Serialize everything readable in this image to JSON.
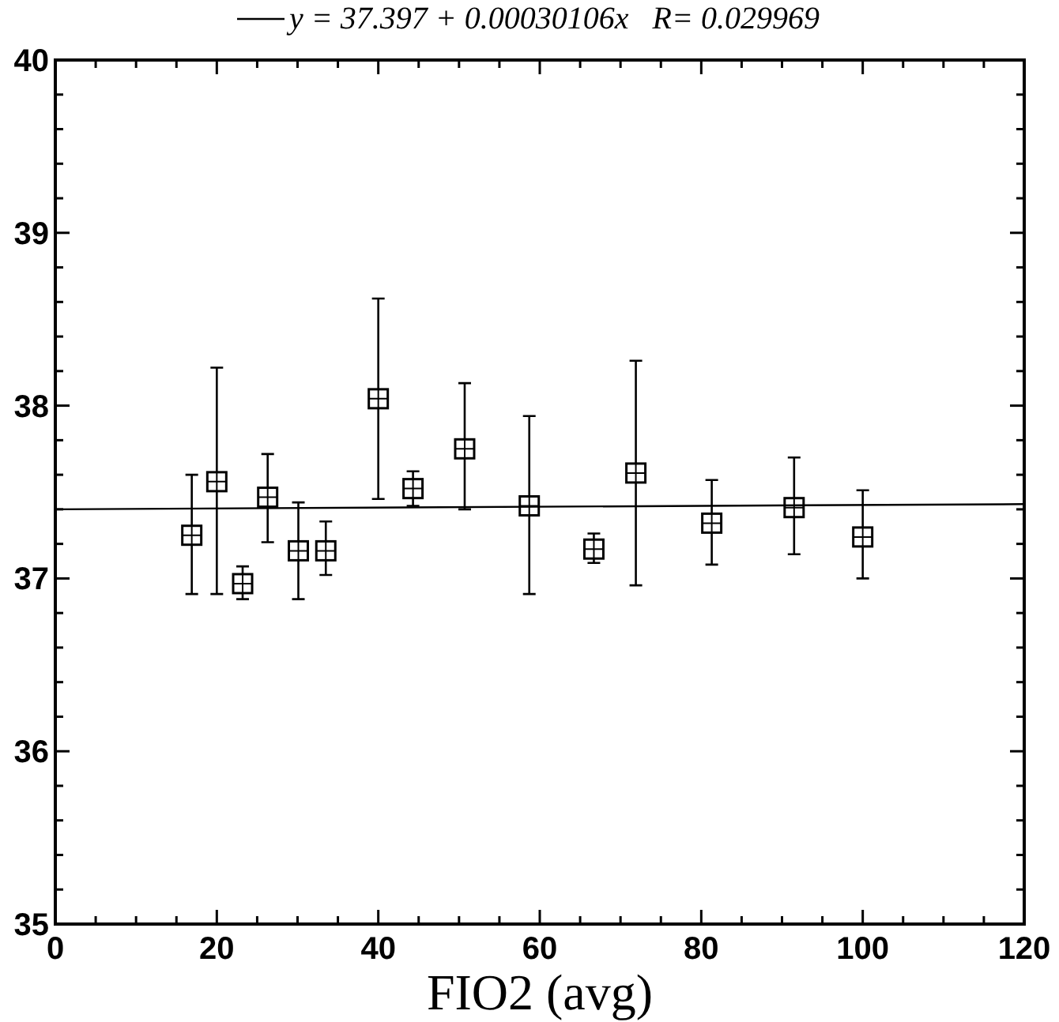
{
  "chart_data": {
    "type": "scatter",
    "xlabel": "FIO2 (avg)",
    "xlim": [
      0,
      120
    ],
    "ylim": [
      35,
      40
    ],
    "xticks": [
      0,
      {
        "value": 5,
        "label": null
      },
      {
        "value": 10,
        "label": null
      },
      {
        "value": 15,
        "label": null
      },
      20,
      {
        "value": 25,
        "label": null
      },
      {
        "value": 30,
        "label": null
      },
      {
        "value": 35,
        "label": null
      },
      40,
      {
        "value": 45,
        "label": null
      },
      {
        "value": 50,
        "label": null
      },
      {
        "value": 55,
        "label": null
      },
      60,
      {
        "value": 65,
        "label": null
      },
      {
        "value": 70,
        "label": null
      },
      {
        "value": 75,
        "label": null
      },
      80,
      {
        "value": 85,
        "label": null
      },
      {
        "value": 90,
        "label": null
      },
      {
        "value": 95,
        "label": null
      },
      100,
      {
        "value": 105,
        "label": null
      },
      {
        "value": 110,
        "label": null
      },
      {
        "value": 115,
        "label": null
      },
      120
    ],
    "yticks": [
      35,
      {
        "value": 35.2,
        "label": null
      },
      {
        "value": 35.4,
        "label": null
      },
      {
        "value": 35.6,
        "label": null
      },
      {
        "value": 35.8,
        "label": null
      },
      36,
      {
        "value": 36.2,
        "label": null
      },
      {
        "value": 36.4,
        "label": null
      },
      {
        "value": 36.6,
        "label": null
      },
      {
        "value": 36.8,
        "label": null
      },
      37,
      {
        "value": 37.2,
        "label": null
      },
      {
        "value": 37.4,
        "label": null
      },
      {
        "value": 37.6,
        "label": null
      },
      {
        "value": 37.8,
        "label": null
      },
      38,
      {
        "value": 38.2,
        "label": null
      },
      {
        "value": 38.4,
        "label": null
      },
      {
        "value": 38.6,
        "label": null
      },
      {
        "value": 38.8,
        "label": null
      },
      39,
      {
        "value": 39.2,
        "label": null
      },
      {
        "value": 39.4,
        "label": null
      },
      {
        "value": 39.6,
        "label": null
      },
      {
        "value": 39.8,
        "label": null
      },
      40
    ],
    "grid": false,
    "legend": "top",
    "marker": "square",
    "series": [
      {
        "type": "scatter",
        "color": "#000000",
        "x": [
          16.9,
          20,
          23.2,
          26.3,
          30.1,
          33.5,
          40,
          44.3,
          50.7,
          58.7,
          66.7,
          71.9,
          81.3,
          91.5,
          100
        ],
        "values": [
          37.25,
          37.56,
          36.97,
          37.47,
          37.16,
          37.16,
          38.04,
          37.52,
          37.75,
          37.42,
          37.17,
          37.61,
          37.32,
          37.41,
          37.24
        ],
        "errors": [
          [
            36.91,
            37.6
          ],
          [
            36.91,
            38.22
          ],
          [
            36.88,
            37.07
          ],
          [
            37.21,
            37.72
          ],
          [
            36.88,
            37.44
          ],
          [
            37.02,
            37.33
          ],
          [
            37.46,
            38.62
          ],
          [
            37.42,
            37.62
          ],
          [
            37.4,
            38.13
          ],
          [
            36.91,
            37.94
          ],
          [
            37.09,
            37.26
          ],
          [
            36.96,
            38.26
          ],
          [
            37.08,
            37.57
          ],
          [
            37.14,
            37.7
          ],
          [
            37.0,
            37.51
          ]
        ]
      },
      {
        "type": "line",
        "name": "y = 37.397 + 0.00030106x   R= 0.029969",
        "color": "#000000",
        "marker": "none",
        "line_style": "solid",
        "x": [
          0,
          120
        ],
        "values": [
          37.4,
          37.43
        ]
      }
    ]
  }
}
